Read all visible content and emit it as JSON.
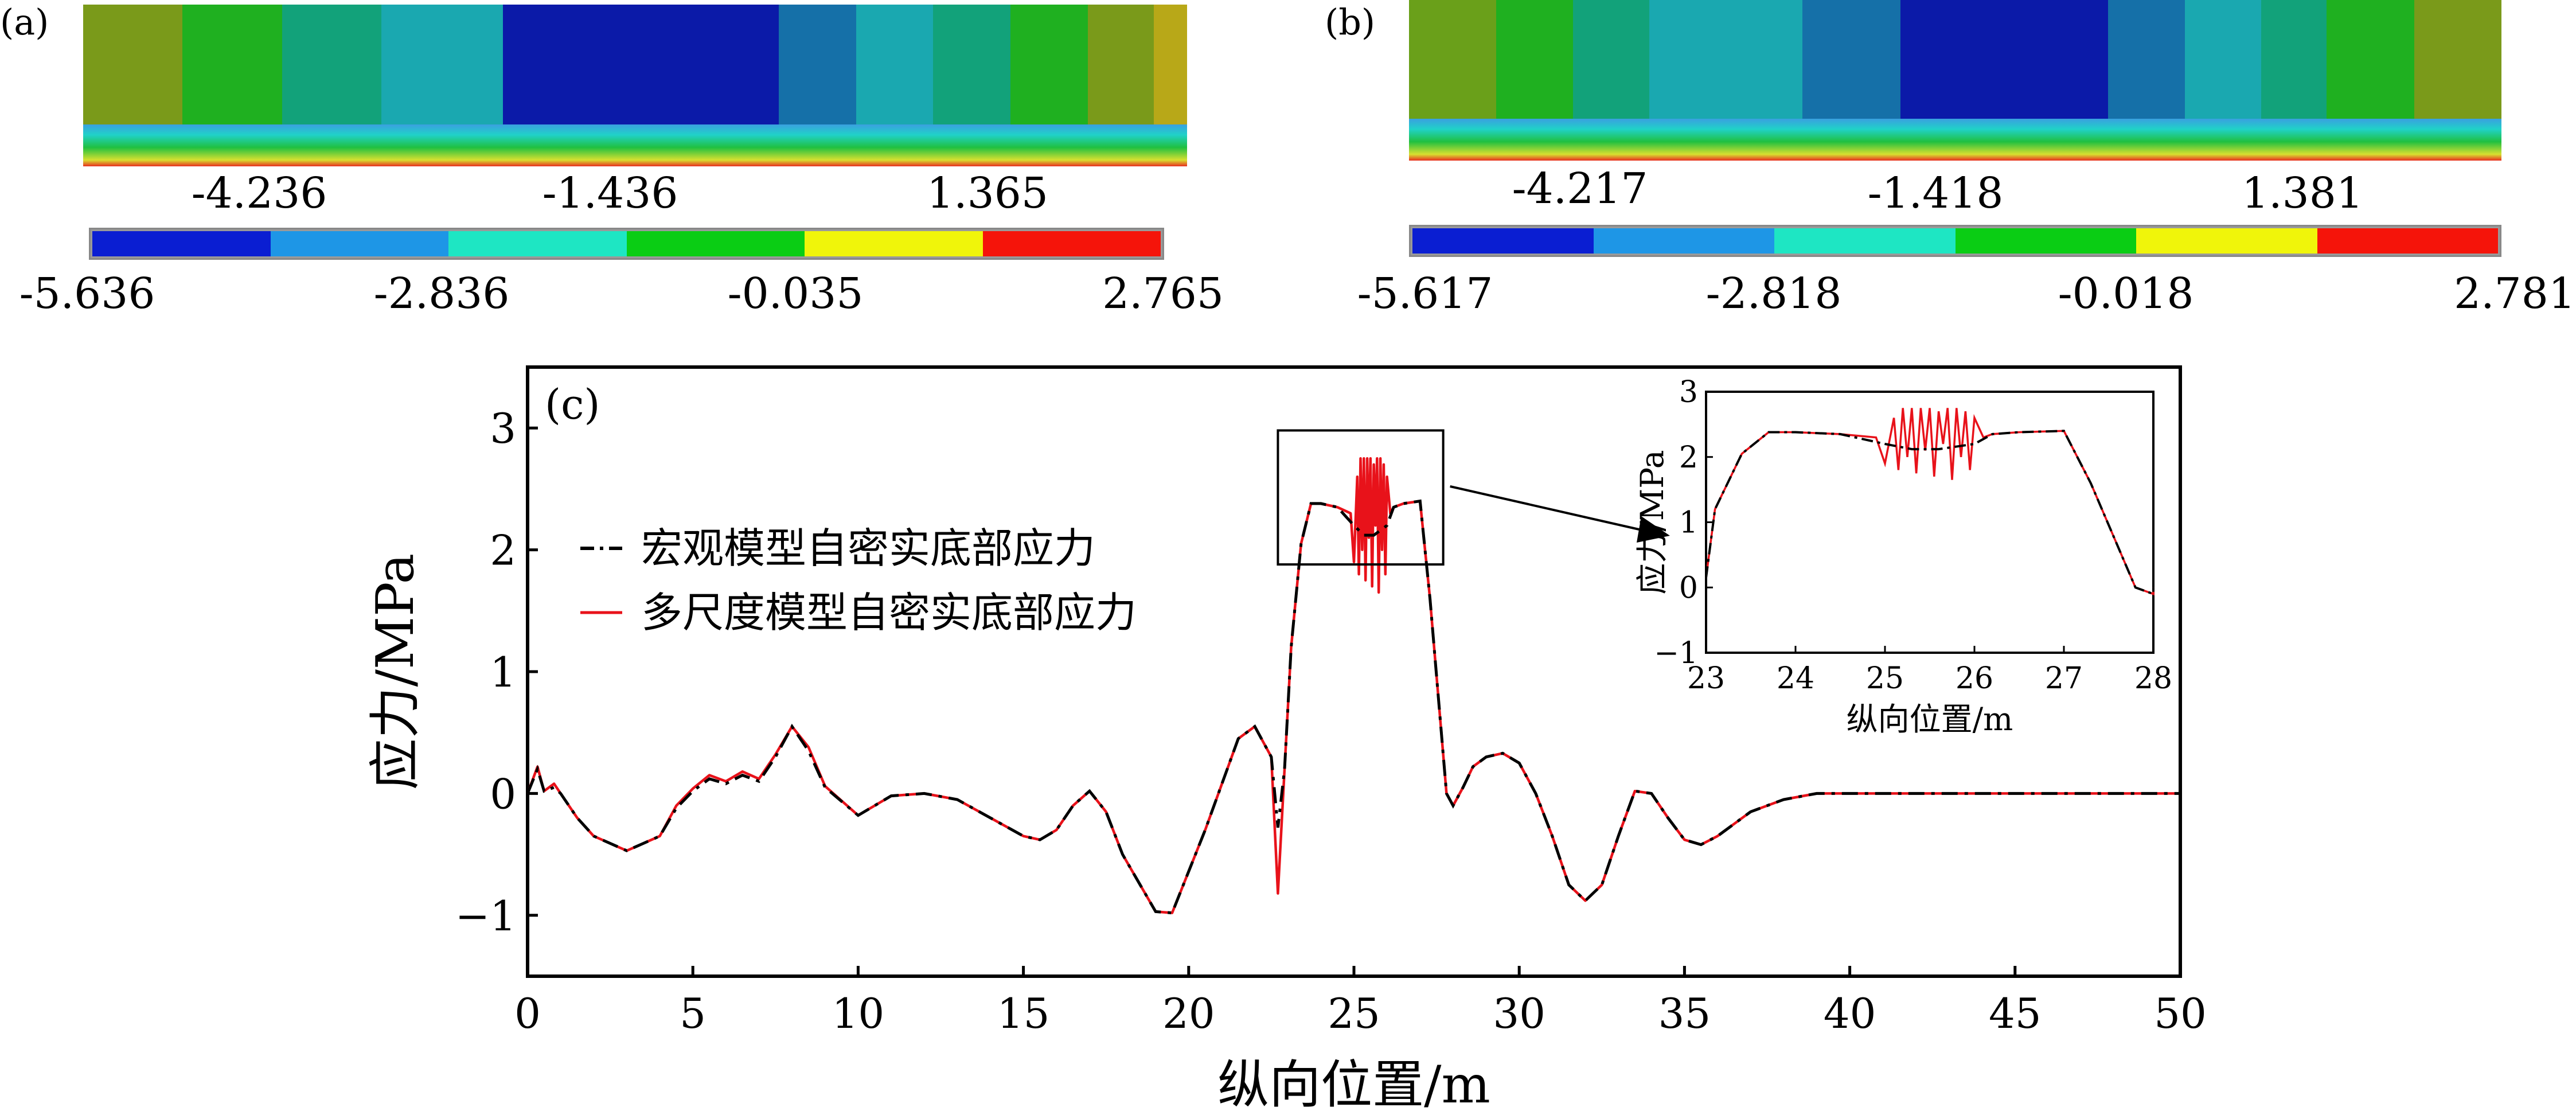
{
  "panels": {
    "a": {
      "label": "(a)",
      "mid_labels": [
        "-4.236",
        "-1.436",
        "1.365"
      ],
      "scale_labels": [
        "-5.636",
        "-2.836",
        "-0.035",
        "2.765"
      ]
    },
    "b": {
      "label": "(b)",
      "mid_labels": [
        "-4.217",
        "-1.418",
        "1.381"
      ],
      "scale_labels": [
        "-5.617",
        "-2.818",
        "-0.018",
        "2.781"
      ]
    }
  },
  "legend_colors": [
    "#0a1ed2",
    "#1e96e6",
    "#1ee6c3",
    "#0acd14",
    "#f0f50a",
    "#f5140a"
  ],
  "chart_data": [
    {
      "type": "line",
      "panel_label": "(c)",
      "xlabel": "纵向位置/m",
      "ylabel": "应力/MPa",
      "xlim": [
        0,
        50
      ],
      "ylim": [
        -1.5,
        3.5
      ],
      "xticks": [
        "0",
        "5",
        "10",
        "15",
        "20",
        "25",
        "30",
        "35",
        "40",
        "45",
        "50"
      ],
      "yticks": [
        "−1",
        "0",
        "1",
        "2",
        "3"
      ],
      "series": [
        {
          "name": "宏观模型自密实底部应力",
          "style": "dash-dot",
          "color": "#000000",
          "x": [
            0,
            0.3,
            0.5,
            0.8,
            1.0,
            1.5,
            2.0,
            3.0,
            4.0,
            4.5,
            5.0,
            5.5,
            6.0,
            6.5,
            7.0,
            7.5,
            8.0,
            8.5,
            9.0,
            10.0,
            11.0,
            12.0,
            13.0,
            14.0,
            15.0,
            15.5,
            16.0,
            16.5,
            17.0,
            17.5,
            18.0,
            19.0,
            19.5,
            20.5,
            21.5,
            22.0,
            22.5,
            22.7,
            22.9,
            23.1,
            23.4,
            23.7,
            24.0,
            24.5,
            25.0,
            25.3,
            25.6,
            26.0,
            26.2,
            26.5,
            27.0,
            27.3,
            27.8,
            28.0,
            28.3,
            28.6,
            29.0,
            29.5,
            30.0,
            30.5,
            31.0,
            31.5,
            32.0,
            32.5,
            33.0,
            33.5,
            34.0,
            34.5,
            35.0,
            35.5,
            36.0,
            37.0,
            38.0,
            39.0,
            40.0,
            45.0,
            50.0
          ],
          "y": [
            0.0,
            0.2,
            0.02,
            0.05,
            0.0,
            -0.2,
            -0.35,
            -0.47,
            -0.35,
            -0.12,
            0.02,
            0.12,
            0.08,
            0.15,
            0.1,
            0.3,
            0.55,
            0.35,
            0.05,
            -0.18,
            -0.02,
            0.0,
            -0.05,
            -0.2,
            -0.35,
            -0.38,
            -0.3,
            -0.1,
            0.02,
            -0.15,
            -0.5,
            -0.97,
            -0.98,
            -0.3,
            0.45,
            0.55,
            0.3,
            -0.28,
            0.2,
            1.2,
            2.05,
            2.38,
            2.38,
            2.35,
            2.2,
            2.12,
            2.12,
            2.2,
            2.35,
            2.38,
            2.4,
            1.6,
            0.0,
            -0.1,
            0.05,
            0.22,
            0.3,
            0.33,
            0.25,
            0.0,
            -0.35,
            -0.75,
            -0.88,
            -0.75,
            -0.35,
            0.02,
            0.0,
            -0.2,
            -0.38,
            -0.42,
            -0.35,
            -0.15,
            -0.05,
            0.0,
            0.0,
            0.0,
            0.0
          ]
        },
        {
          "name": "多尺度模型自密实底部应力",
          "style": "solid",
          "color": "#e8121a",
          "x": [
            0,
            0.3,
            0.5,
            0.8,
            1.0,
            1.5,
            2.0,
            3.0,
            4.0,
            4.5,
            5.0,
            5.5,
            6.0,
            6.5,
            7.0,
            7.5,
            8.0,
            8.5,
            9.0,
            10.0,
            11.0,
            12.0,
            13.0,
            14.0,
            15.0,
            15.5,
            16.0,
            16.5,
            17.0,
            17.5,
            18.0,
            19.0,
            19.5,
            20.5,
            21.5,
            22.0,
            22.5,
            22.7,
            22.9,
            23.1,
            23.4,
            23.7,
            24.0,
            24.5,
            24.9,
            25.0,
            25.1,
            25.15,
            25.2,
            25.25,
            25.3,
            25.35,
            25.4,
            25.45,
            25.5,
            25.55,
            25.6,
            25.65,
            25.7,
            25.75,
            25.8,
            25.85,
            25.9,
            25.95,
            26.0,
            26.1,
            26.2,
            26.5,
            27.0,
            27.3,
            27.8,
            28.0,
            28.3,
            28.6,
            29.0,
            29.5,
            30.0,
            30.5,
            31.0,
            31.5,
            32.0,
            32.5,
            33.0,
            33.5,
            34.0,
            34.5,
            35.0,
            35.5,
            36.0,
            37.0,
            38.0,
            39.0,
            40.0,
            45.0,
            50.0
          ],
          "y": [
            0.0,
            0.22,
            0.02,
            0.08,
            0.0,
            -0.2,
            -0.35,
            -0.47,
            -0.35,
            -0.1,
            0.04,
            0.15,
            0.1,
            0.18,
            0.12,
            0.32,
            0.55,
            0.38,
            0.06,
            -0.18,
            -0.02,
            0.0,
            -0.05,
            -0.2,
            -0.35,
            -0.38,
            -0.3,
            -0.1,
            0.02,
            -0.15,
            -0.5,
            -0.97,
            -0.98,
            -0.3,
            0.45,
            0.55,
            0.3,
            -0.82,
            0.2,
            1.2,
            2.05,
            2.38,
            2.38,
            2.35,
            2.3,
            1.9,
            2.6,
            1.8,
            2.75,
            2.0,
            2.75,
            1.75,
            2.75,
            2.1,
            2.75,
            1.7,
            2.7,
            2.2,
            2.75,
            1.65,
            2.75,
            2.0,
            2.7,
            1.8,
            2.6,
            2.3,
            2.35,
            2.38,
            2.4,
            1.6,
            0.0,
            -0.1,
            0.05,
            0.22,
            0.3,
            0.33,
            0.25,
            0.0,
            -0.35,
            -0.75,
            -0.88,
            -0.75,
            -0.35,
            0.02,
            0.0,
            -0.2,
            -0.38,
            -0.42,
            -0.35,
            -0.15,
            -0.05,
            0.0,
            0.0,
            0.0,
            0.0
          ]
        }
      ]
    },
    {
      "type": "line",
      "role": "inset",
      "xlabel": "纵向位置/m",
      "ylabel": "应力/MPa",
      "xlim": [
        23,
        28
      ],
      "ylim": [
        -1,
        3
      ],
      "xticks": [
        "23",
        "24",
        "25",
        "26",
        "27",
        "28"
      ],
      "yticks": [
        "−1",
        "0",
        "1",
        "2",
        "3"
      ]
    }
  ]
}
